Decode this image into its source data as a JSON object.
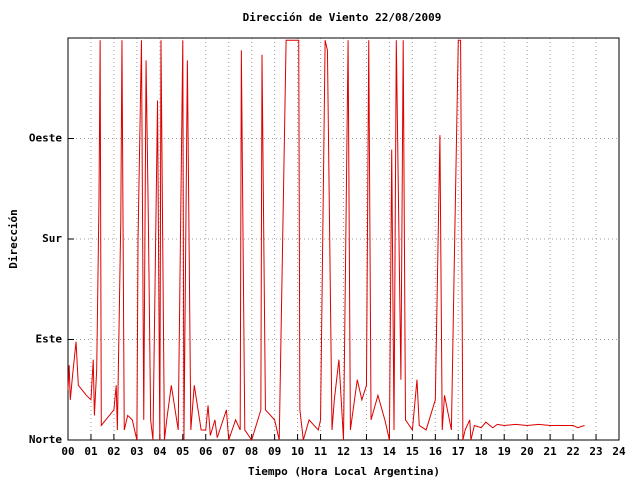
{
  "chart_data": {
    "type": "line",
    "title": "Dirección de Viento 22/08/2009",
    "xlabel": "Tiempo (Hora Local Argentina)",
    "ylabel": "Dirección",
    "xlim": [
      0,
      24
    ],
    "xticks": [
      {
        "value": 0,
        "label": "00"
      },
      {
        "value": 1,
        "label": "01"
      },
      {
        "value": 2,
        "label": "02"
      },
      {
        "value": 3,
        "label": "03"
      },
      {
        "value": 4,
        "label": "04"
      },
      {
        "value": 5,
        "label": "05"
      },
      {
        "value": 6,
        "label": "06"
      },
      {
        "value": 7,
        "label": "07"
      },
      {
        "value": 8,
        "label": "08"
      },
      {
        "value": 9,
        "label": "09"
      },
      10,
      11,
      12,
      13,
      14,
      15,
      16,
      17,
      18,
      19,
      20,
      21,
      22,
      23,
      24
    ],
    "ylim": [
      0,
      360
    ],
    "yticks": [
      {
        "value": 0,
        "label": "Norte"
      },
      {
        "value": 90,
        "label": "Este"
      },
      {
        "value": 180,
        "label": "Sur"
      },
      {
        "value": 270,
        "label": "Oeste"
      }
    ],
    "grid": true,
    "color": "#dd0000",
    "x": [
      0,
      0.05,
      0.1,
      0.2,
      0.35,
      0.45,
      0.8,
      1.0,
      1.1,
      1.15,
      1.25,
      1.35,
      1.4,
      1.45,
      2.0,
      2.1,
      2.15,
      2.3,
      2.35,
      2.45,
      2.6,
      2.8,
      3.0,
      3.05,
      3.2,
      3.3,
      3.4,
      3.5,
      3.6,
      3.7,
      3.9,
      4.0,
      4.05,
      4.2,
      4.3,
      4.5,
      4.8,
      5.0,
      5.05,
      5.2,
      5.35,
      5.5,
      5.8,
      6.0,
      6.1,
      6.2,
      6.4,
      6.5,
      6.9,
      7.0,
      7.3,
      7.5,
      7.55,
      7.7,
      8.0,
      8.4,
      8.45,
      8.6,
      9.0,
      9.2,
      9.5,
      9.6,
      9.9,
      10.05,
      10.1,
      10.25,
      10.5,
      10.9,
      11.0,
      11.2,
      11.3,
      11.5,
      11.6,
      11.8,
      12.0,
      12.2,
      12.3,
      12.6,
      12.8,
      13.0,
      13.1,
      13.2,
      13.5,
      13.8,
      14.0,
      14.1,
      14.2,
      14.3,
      14.5,
      14.6,
      14.7,
      15.0,
      15.2,
      15.3,
      15.6,
      16.0,
      16.2,
      16.3,
      16.4,
      16.7,
      16.85,
      17.0,
      17.1,
      17.2,
      17.3,
      17.5,
      17.55,
      17.7,
      18.0,
      18.2,
      18.5,
      18.7,
      19.0,
      19.5,
      20.0,
      20.5,
      21.0,
      21.5,
      22.0,
      22.2,
      22.5
    ],
    "values": [
      45,
      67,
      36,
      58,
      88,
      49,
      40,
      36,
      72,
      22,
      63,
      215,
      358,
      13,
      27,
      49,
      9,
      197,
      358,
      9,
      22,
      18,
      0,
      179,
      358,
      18,
      340,
      197,
      18,
      0,
      304,
      0,
      358,
      0,
      18,
      49,
      9,
      358,
      0,
      340,
      9,
      49,
      9,
      9,
      31,
      4,
      18,
      2,
      27,
      0,
      18,
      9,
      349,
      9,
      0,
      27,
      345,
      27,
      18,
      0,
      358,
      358,
      358,
      358,
      27,
      0,
      18,
      9,
      18,
      358,
      349,
      9,
      36,
      72,
      0,
      358,
      9,
      54,
      36,
      49,
      358,
      18,
      40,
      18,
      0,
      260,
      9,
      358,
      54,
      358,
      18,
      9,
      54,
      13,
      9,
      36,
      273,
      9,
      40,
      9,
      188,
      358,
      358,
      0,
      9,
      18,
      0,
      13,
      11,
      16,
      11,
      14,
      13,
      14,
      13,
      14,
      13,
      13,
      13,
      11,
      13
    ]
  }
}
